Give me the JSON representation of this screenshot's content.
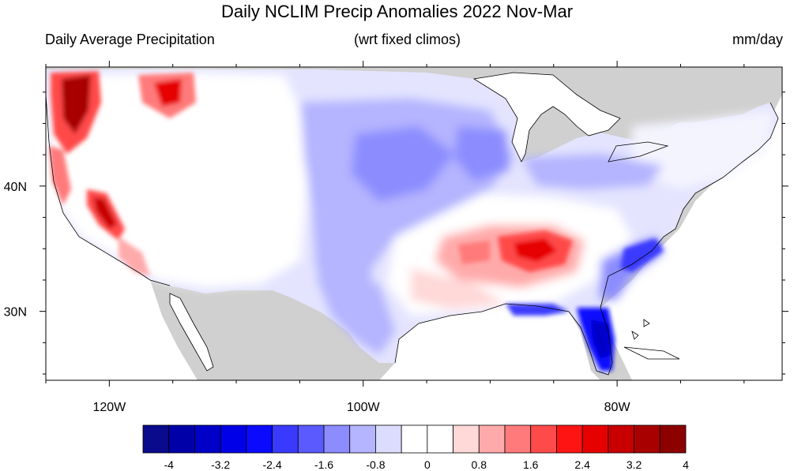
{
  "title": "Daily NCLIM Precip Anomalies 2022 Nov-Mar",
  "subtitle_left": "Daily Average Precipitation",
  "subtitle_center": "(wrt fixed climos)",
  "subtitle_right": "mm/day",
  "map": {
    "lon_range": [
      -125,
      -67
    ],
    "lat_range": [
      24.5,
      49.5
    ],
    "lon_labels": [
      {
        "lon": -120,
        "label": "120W"
      },
      {
        "lon": -100,
        "label": "100W"
      },
      {
        "lon": -80,
        "label": "80W"
      }
    ],
    "lat_labels": [
      {
        "lat": 40,
        "label": "40N"
      },
      {
        "lat": 30,
        "label": "30N"
      }
    ],
    "colors": {
      "land_masked": "#d0d0d0",
      "water": "#ffffff"
    }
  },
  "colorbar": {
    "colors": [
      "#0a0a8c",
      "#0000a8",
      "#0000c8",
      "#0000e6",
      "#0a0aff",
      "#3a3aff",
      "#5a5aff",
      "#8c8cff",
      "#b4b4ff",
      "#dcdcff",
      "#ffffff",
      "#ffffff",
      "#ffd8d8",
      "#ffaaaa",
      "#ff7a7a",
      "#ff4a4a",
      "#ff1414",
      "#e60000",
      "#c80000",
      "#a80000",
      "#8c0000"
    ],
    "tick_labels": [
      "-4",
      "-3.2",
      "-2.4",
      "-1.6",
      "-0.8",
      "0",
      "0.8",
      "1.6",
      "2.4",
      "3.2",
      "4"
    ]
  }
}
